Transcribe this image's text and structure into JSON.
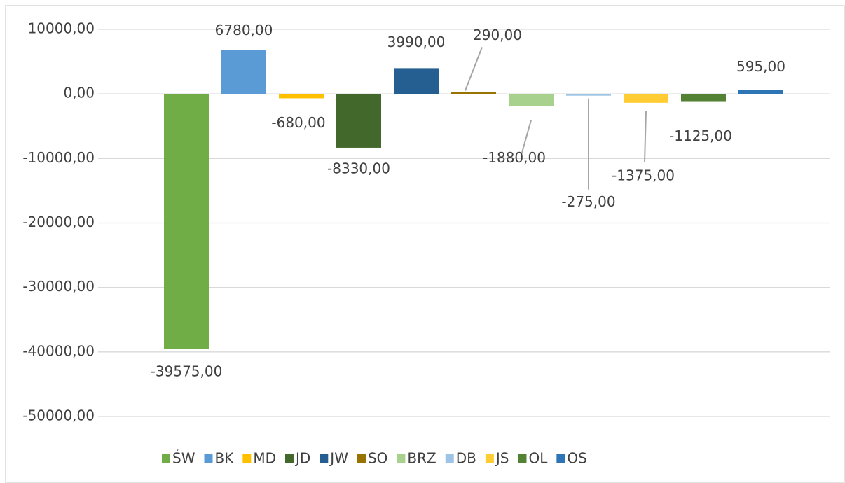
{
  "chart_data": {
    "type": "bar",
    "ylim": [
      -50000,
      10000
    ],
    "yticks": [
      {
        "value": 10000,
        "label": "10000,00"
      },
      {
        "value": 0,
        "label": "0,00"
      },
      {
        "value": -10000,
        "label": "-10000,00"
      },
      {
        "value": -20000,
        "label": "-20000,00"
      },
      {
        "value": -30000,
        "label": "-30000,00"
      },
      {
        "value": -40000,
        "label": "-40000,00"
      },
      {
        "value": -50000,
        "label": "-50000,00"
      }
    ],
    "grid": true,
    "legend": "bottom",
    "series": [
      {
        "name": "ŚW",
        "color": "#70ad47",
        "values": [
          -39575
        ],
        "value_labels": [
          "-39575,00"
        ]
      },
      {
        "name": "BK",
        "color": "#5b9bd5",
        "values": [
          6780
        ],
        "value_labels": [
          "6780,00"
        ]
      },
      {
        "name": "MD",
        "color": "#ffc000",
        "values": [
          -680
        ],
        "value_labels": [
          "-680,00"
        ]
      },
      {
        "name": "JD",
        "color": "#43682b",
        "values": [
          -8330
        ],
        "value_labels": [
          "-8330,00"
        ]
      },
      {
        "name": "JW",
        "color": "#255e91",
        "values": [
          3990
        ],
        "value_labels": [
          "3990,00"
        ]
      },
      {
        "name": "SO",
        "color": "#997300",
        "values": [
          290
        ],
        "value_labels": [
          "290,00"
        ]
      },
      {
        "name": "BRZ",
        "color": "#a9d18e",
        "values": [
          -1880
        ],
        "value_labels": [
          "-1880,00"
        ]
      },
      {
        "name": "DB",
        "color": "#9dc3e6",
        "values": [
          -275
        ],
        "value_labels": [
          "-275,00"
        ]
      },
      {
        "name": "JS",
        "color": "#ffcd33",
        "values": [
          -1375
        ],
        "value_labels": [
          "-1375,00"
        ]
      },
      {
        "name": "OL",
        "color": "#548235",
        "values": [
          -1125
        ],
        "value_labels": [
          "-1125,00"
        ]
      },
      {
        "name": "OS",
        "color": "#2e75b6",
        "values": [
          595
        ],
        "value_labels": [
          "595,00"
        ]
      }
    ]
  }
}
